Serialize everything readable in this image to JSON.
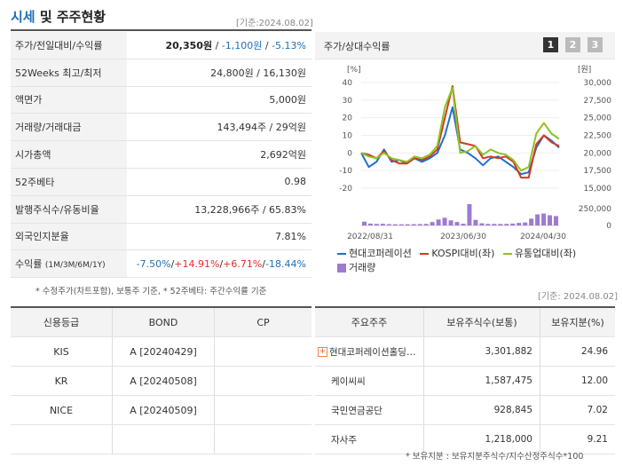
{
  "header": {
    "title_accent": "시세",
    "title_rest": " 및 주주현황",
    "base_date": "[기준:2024.08.02]"
  },
  "summary": {
    "rows": [
      {
        "label": "주가/전일대비/수익률",
        "price": "20,350원",
        "change": "-1,100원",
        "rate": "-5.13%"
      },
      {
        "label": "52Weeks 최고/최저",
        "value": "24,800원 / 16,130원"
      },
      {
        "label": "액면가",
        "value": "5,000원"
      },
      {
        "label": "거래량/거래대금",
        "value": "143,494주 / 29억원"
      },
      {
        "label": "시가총액",
        "value": "2,692억원"
      },
      {
        "label": "52주베타",
        "value": "0.98"
      },
      {
        "label": "발행주식수/유동비율",
        "value": "13,228,966주 / 65.83%"
      },
      {
        "label": "외국인지분율",
        "value": "7.81%"
      }
    ],
    "returns": {
      "label": "수익률",
      "periods": "(1M/3M/6M/1Y)",
      "r1m": "-7.50%",
      "r3m": "+14.91%",
      "r6m": "+6.71%",
      "r1y": "-18.44%"
    },
    "note": "* 수정주가(차트포함), 보통주 기준, * 52주베타: 주간수익률 기준"
  },
  "chart_panel": {
    "title": "주가/상대수익률",
    "pages": [
      "1",
      "2",
      "3"
    ],
    "active_page": "1"
  },
  "chart_data": {
    "type": "line",
    "left_axis_label": "[%]",
    "right_axis_label": "[원]",
    "left_ticks": [
      "40",
      "30",
      "20",
      "10",
      "0",
      "-10",
      "-20"
    ],
    "right_ticks": [
      "30,000",
      "27,500",
      "25,000",
      "22,500",
      "20,000",
      "17,500",
      "15,000"
    ],
    "volume_ticks": [
      "250,000",
      "0"
    ],
    "ylim_left": [
      -20,
      40
    ],
    "ylim_volume": [
      0,
      250000
    ],
    "x_labels": [
      "2022/08/31",
      "2023/06/30",
      "2024/04/30"
    ],
    "series": [
      {
        "name": "현대코퍼레이션",
        "color": "#1f6fc9",
        "values": [
          0,
          -8,
          -5,
          2,
          -5,
          -4,
          -6,
          -3,
          -5,
          -3,
          0,
          10,
          26,
          2,
          0,
          -3,
          -7,
          -3,
          -2,
          -5,
          -8,
          -12,
          -11,
          3,
          10,
          7,
          3
        ]
      },
      {
        "name": "KOSPI대비(좌)",
        "color": "#d23a22",
        "values": [
          0,
          -1,
          -3,
          1,
          -4,
          -6,
          -6,
          -3,
          -4,
          -2,
          2,
          20,
          38,
          6,
          5,
          4,
          -3,
          -2,
          -3,
          -2,
          -5,
          -14,
          -14,
          5,
          10,
          6,
          4
        ]
      },
      {
        "name": "유통업대비(좌)",
        "color": "#8dc225",
        "values": [
          0,
          -2,
          -3,
          0,
          -3,
          -4,
          -5,
          -2,
          -3,
          -1,
          4,
          26,
          37,
          0,
          1,
          4,
          -1,
          2,
          0,
          -1,
          -4,
          -10,
          -8,
          11,
          17,
          11,
          8
        ]
      }
    ],
    "volume": {
      "name": "거래량",
      "color": "#9c7bd0",
      "values": [
        45000,
        22000,
        18000,
        20000,
        15000,
        14000,
        14000,
        14000,
        15000,
        16000,
        18000,
        40000,
        70000,
        90000,
        60000,
        40000,
        20000,
        260000,
        65000,
        25000,
        18000,
        18000,
        17000,
        18000,
        22000,
        30000,
        35000,
        80000,
        130000,
        140000,
        120000,
        110000
      ]
    }
  },
  "credit_table": {
    "headers": [
      "신용등급",
      "BOND",
      "CP"
    ],
    "rows": [
      [
        "KIS",
        "A [20240429]",
        ""
      ],
      [
        "KR",
        "A [20240508]",
        ""
      ],
      [
        "NICE",
        "A [20240509]",
        ""
      ],
      [
        "",
        "",
        ""
      ]
    ]
  },
  "holders_table": {
    "base_date": "[기준: 2024.08.02]",
    "headers": [
      "주요주주",
      "보유주식수(보통)",
      "보유지분(%)"
    ],
    "rows": [
      {
        "name": "현대코퍼레이션홀딩스…",
        "shares": "3,301,882",
        "pct": "24.96",
        "expandable": true
      },
      {
        "name": "케이씨씨",
        "shares": "1,587,475",
        "pct": "12.00"
      },
      {
        "name": "국민연금공단",
        "shares": "928,845",
        "pct": "7.02"
      },
      {
        "name": "자사주",
        "shares": "1,218,000",
        "pct": "9.21"
      }
    ],
    "note": "* 보유지분 : 보유지분주식수/지수산정주식수*100"
  }
}
